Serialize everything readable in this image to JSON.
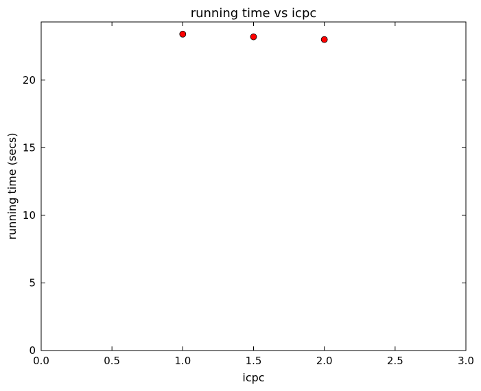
{
  "chart_data": {
    "type": "scatter",
    "title": "running time vs icpc",
    "xlabel": "icpc",
    "ylabel": "running time (secs)",
    "xlim": [
      0.0,
      3.0
    ],
    "ylim": [
      0,
      24.3
    ],
    "x_ticks": [
      0.0,
      0.5,
      1.0,
      1.5,
      2.0,
      2.5,
      3.0
    ],
    "x_tick_labels": [
      "0.0",
      "0.5",
      "1.0",
      "1.5",
      "2.0",
      "2.5",
      "3.0"
    ],
    "y_ticks": [
      0,
      5,
      10,
      15,
      20
    ],
    "y_tick_labels": [
      "0",
      "5",
      "10",
      "15",
      "20"
    ],
    "grid": false,
    "legend": "none",
    "series": [
      {
        "x": [
          1.0,
          1.5,
          2.0
        ],
        "y": [
          23.4,
          23.2,
          23.0
        ],
        "color": "#ff0000",
        "edge_color": "#000000",
        "marker": "circle"
      }
    ]
  }
}
